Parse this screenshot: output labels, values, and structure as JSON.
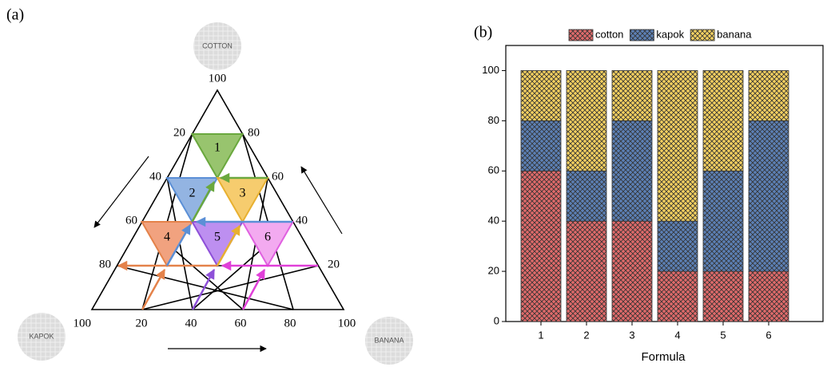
{
  "panel_a": {
    "label": "(a)",
    "vertices": {
      "top": "COTTON",
      "left": "KAPOK",
      "right": "BANANA"
    },
    "apex_label": "100",
    "left_scale": [
      "20",
      "40",
      "60",
      "80",
      "100"
    ],
    "right_scale": [
      "80",
      "60",
      "40",
      "20"
    ],
    "bottom_scale": [
      "20",
      "40",
      "60",
      "80",
      "100"
    ],
    "regions": [
      "1",
      "2",
      "3",
      "4",
      "5",
      "6"
    ]
  },
  "chart_data": {
    "type": "stacked_bar",
    "panel_label": "(b)",
    "x_label": "Formula",
    "categories": [
      "1",
      "2",
      "3",
      "4",
      "5",
      "6"
    ],
    "series": [
      {
        "name": "cotton",
        "color": "#e06a6a",
        "values": [
          60,
          40,
          40,
          20,
          20,
          20
        ]
      },
      {
        "name": "kapok",
        "color": "#5c80b5",
        "values": [
          20,
          20,
          40,
          20,
          40,
          60
        ]
      },
      {
        "name": "banana",
        "color": "#f3d060",
        "values": [
          20,
          40,
          20,
          60,
          40,
          20
        ]
      }
    ],
    "ylim": [
      0,
      110
    ],
    "yticks": [
      0,
      20,
      40,
      60,
      80,
      100
    ],
    "legend": "top"
  }
}
